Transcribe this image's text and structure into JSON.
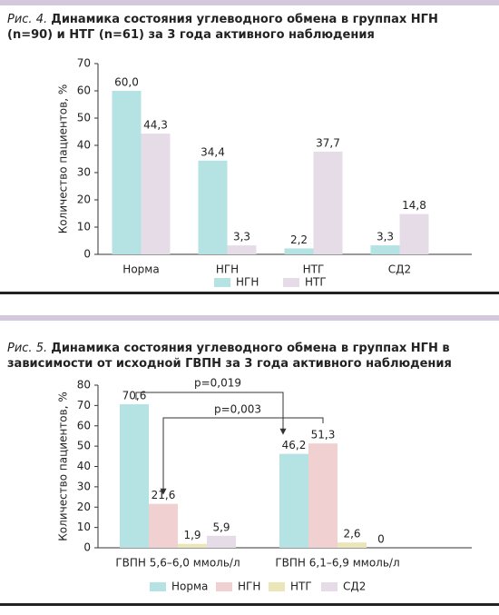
{
  "chart_data": [
    {
      "type": "bar",
      "figure_label": "Рис. 4.",
      "title": "Динамика состояния углеводного обмена в группах НГН (n=90) и НТГ (n=61) за 3 года активного наблюдения",
      "ylabel": "Количество пациентов, %",
      "categories": [
        "Норма",
        "НГН",
        "НТГ",
        "СД2"
      ],
      "series": [
        {
          "name": "НГН",
          "color": "#b5e3e3",
          "values": [
            60.0,
            34.4,
            2.2,
            3.3
          ],
          "value_labels": [
            "60,0",
            "34,4",
            "2,2",
            "3,3"
          ]
        },
        {
          "name": "НТГ",
          "color": "#e6dce8",
          "values": [
            44.3,
            3.3,
            37.7,
            14.8
          ],
          "value_labels": [
            "44,3",
            "3,3",
            "37,7",
            "14,8"
          ]
        }
      ],
      "ylim": [
        0,
        70
      ],
      "yticks": [
        0,
        10,
        20,
        30,
        40,
        50,
        60,
        70
      ],
      "grid": false
    },
    {
      "type": "bar",
      "figure_label": "Рис. 5.",
      "title": "Динамика состояния углеводного обмена в группах НГН в зависимости от исходной ГВПН за 3 года активного наблюдения",
      "ylabel": "Количество пациентов, %",
      "categories": [
        "ГВПН 5,6–6,0 ммоль/л",
        "ГВПН 6,1–6,9 ммоль/л"
      ],
      "series": [
        {
          "name": "Норма",
          "color": "#b5e3e3",
          "values": [
            70.6,
            46.2
          ],
          "value_labels": [
            "70,6",
            "46,2"
          ]
        },
        {
          "name": "НГН",
          "color": "#f0d0d0",
          "values": [
            21.6,
            51.3
          ],
          "value_labels": [
            "21,6",
            "51,3"
          ]
        },
        {
          "name": "НТГ",
          "color": "#ebe6b8",
          "values": [
            1.9,
            2.6
          ],
          "value_labels": [
            "1,9",
            "2,6"
          ]
        },
        {
          "name": "СД2",
          "color": "#e6dce8",
          "values": [
            5.9,
            0
          ],
          "value_labels": [
            "5,9",
            "0"
          ]
        }
      ],
      "annotations": [
        "p=0,019",
        "p=0,003"
      ],
      "ylim": [
        0,
        80
      ],
      "yticks": [
        0,
        10,
        20,
        30,
        40,
        50,
        60,
        70,
        80
      ],
      "grid": false
    }
  ]
}
